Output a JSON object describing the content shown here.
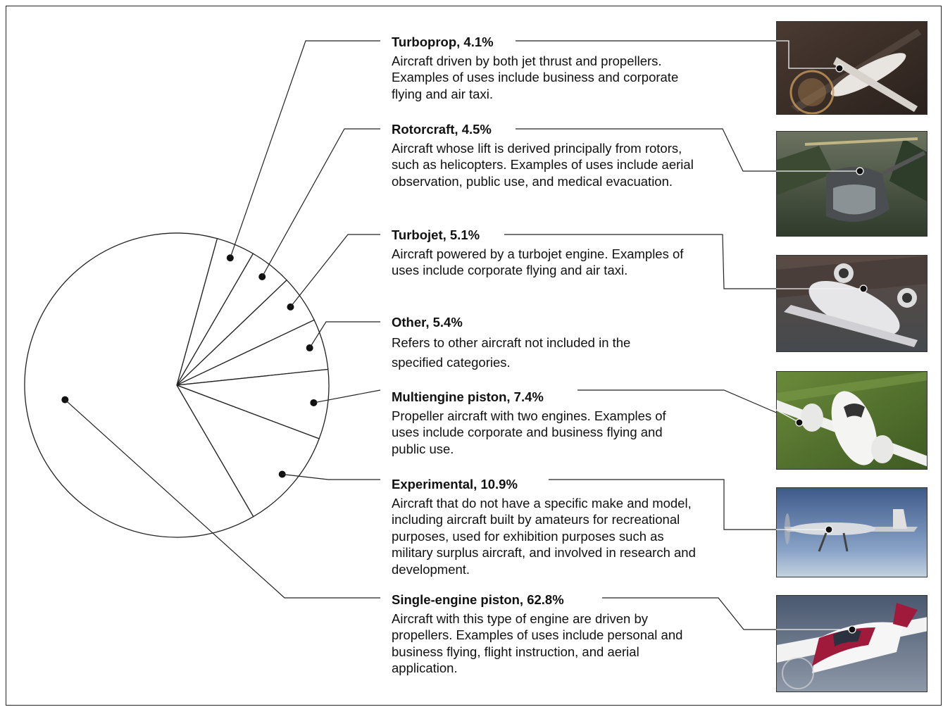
{
  "chart_data": {
    "type": "pie",
    "title": "",
    "slices": [
      {
        "label": "Turboprop",
        "value": 4.1,
        "title": "Turboprop, 4.1%",
        "description": "Aircraft driven by both jet thrust and propellers. Examples of uses include business and corporate flying and air taxi."
      },
      {
        "label": "Rotorcraft",
        "value": 4.5,
        "title": "Rotorcraft, 4.5%",
        "description": "Aircraft whose lift is derived principally from rotors, such as helicopters. Examples of uses include aerial observation, public use, and medical evacuation."
      },
      {
        "label": "Turbojet",
        "value": 5.1,
        "title": "Turbojet, 5.1%",
        "description": "Aircraft powered by a turbojet engine. Examples of uses include corporate flying and air taxi."
      },
      {
        "label": "Other",
        "value": 5.4,
        "title": "Other, 5.4%",
        "description": "Refers to other aircraft not included in the specified categories."
      },
      {
        "label": "Multiengine piston",
        "value": 7.4,
        "title": "Multiengine piston, 7.4%",
        "description": "Propeller aircraft with two engines. Examples of uses include corporate and business flying and public use."
      },
      {
        "label": "Experimental",
        "value": 10.9,
        "title": "Experimental, 10.9%",
        "description": "Aircraft that do not have a specific make and model, including aircraft built by amateurs for recreational purposes, used for exhibition purposes such as military surplus aircraft, and involved in research and development."
      },
      {
        "label": "Single-engine piston",
        "value": 62.8,
        "title": "Single-engine piston, 62.8%",
        "description": "Aircraft with this type of engine are driven by propellers. Examples of uses include personal and business flying, flight instruction, and aerial application."
      }
    ],
    "photos": [
      "turboprop-aircraft-photo",
      "helicopter-photo",
      "turbojet-aircraft-photo",
      "twin-engine-aircraft-photo",
      "experimental-aircraft-photo",
      "single-engine-aircraft-photo"
    ]
  }
}
